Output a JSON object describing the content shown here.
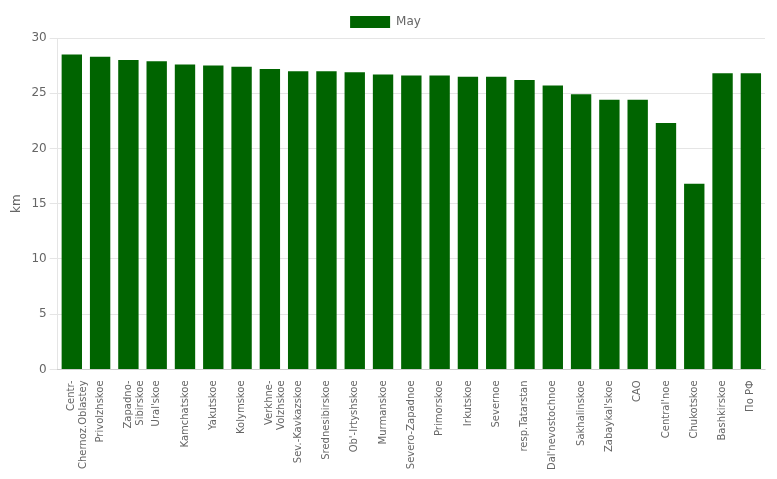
{
  "chart_data": {
    "type": "bar",
    "categories": [
      "Centr-\nChernoz.Oblastey",
      "Privolzhskoe",
      "Zapadno-\nSibirskoe",
      "Ural'skoe",
      "Kamchatskoe",
      "Yakutskoe",
      "Kolymskoe",
      "Verkhne-\nVolzhskoe",
      "Sev.-Kavkazskoe",
      "Srednesibirskoe",
      "Ob'-Irtyshskoe",
      "Murmanskoe",
      "Severo-Zapadnoe",
      "Primorskoe",
      "Irkutskoe",
      "Severnoe",
      "resp.Tatarstan",
      "Dal'nevostochnoe",
      "Sakhalinskoe",
      "Zabaykal'skoe",
      "CAO",
      "Central'noe",
      "Chukotskoe",
      "Bashkirskoe",
      "По РФ"
    ],
    "series": [
      {
        "name": "May",
        "color": "#006400",
        "values": [
          28.5,
          28.3,
          28.0,
          27.9,
          27.6,
          27.5,
          27.4,
          27.2,
          27.0,
          27.0,
          26.9,
          26.7,
          26.6,
          26.6,
          26.5,
          26.5,
          26.2,
          25.7,
          24.9,
          24.4,
          24.4,
          22.3,
          16.8,
          26.8,
          26.8
        ]
      }
    ],
    "ylabel": "km",
    "ylim": [
      0,
      30
    ],
    "yticks": [
      0,
      5,
      10,
      15,
      20,
      25,
      30
    ],
    "grid": true,
    "legend": "top"
  }
}
